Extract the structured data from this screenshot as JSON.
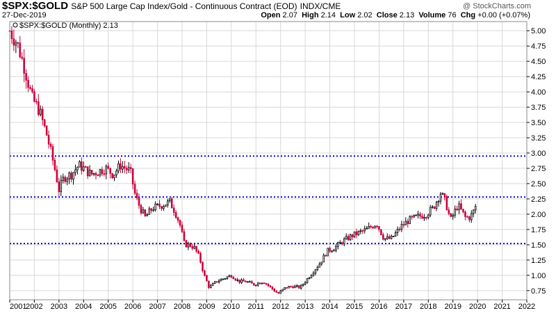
{
  "header": {
    "symbol": "$SPX:$GOLD",
    "description": "S&P 500 Large Cap Index/Gold - Continuous Contract (EOD)",
    "exchange": "INDX/CME",
    "date": "27-Dec-2019",
    "watermark": "@ StockCharts.com",
    "open_label": "Open",
    "open": "2.07",
    "high_label": "High",
    "high": "2.14",
    "low_label": "Low",
    "low": "2.02",
    "close_label": "Close",
    "close": "2.13",
    "volume_label": "Volume",
    "volume": "76",
    "chg_label": "Chg",
    "chg": "+0.00 (+0.07%)"
  },
  "legend_text": "$SPX:$GOLD (Monthly) 2.13",
  "colors": {
    "up": "#000000",
    "down": "#c8003c",
    "support": "#0000cc",
    "grid": "#d8d8d8"
  },
  "chart_data": {
    "type": "candlestick",
    "ylim": [
      0.6,
      5.15
    ],
    "y_ticks": [
      "0.75",
      "1.00",
      "1.25",
      "1.50",
      "1.75",
      "2.00",
      "2.25",
      "2.50",
      "2.75",
      "3.00",
      "3.25",
      "3.50",
      "3.75",
      "4.00",
      "4.25",
      "4.50",
      "4.75",
      "5.00"
    ],
    "x_ticks": [
      "2001",
      "2002",
      "2003",
      "2004",
      "2005",
      "2006",
      "2007",
      "2008",
      "2009",
      "2010",
      "2011",
      "2012",
      "2013",
      "2014",
      "2015",
      "2016",
      "2017",
      "2018",
      "2019",
      "2020",
      "2021",
      "2022"
    ],
    "xlim": [
      2001.0,
      2022.0
    ],
    "horizontal_lines": [
      2.95,
      2.28,
      1.52
    ],
    "anchors": [
      [
        2001.0,
        5.0
      ],
      [
        2001.3,
        4.8
      ],
      [
        2001.6,
        4.4
      ],
      [
        2001.9,
        3.9
      ],
      [
        2002.2,
        3.7
      ],
      [
        2002.5,
        3.3
      ],
      [
        2002.8,
        2.8
      ],
      [
        2003.0,
        2.4
      ],
      [
        2003.2,
        2.6
      ],
      [
        2003.5,
        2.65
      ],
      [
        2003.8,
        2.8
      ],
      [
        2004.0,
        2.75
      ],
      [
        2004.3,
        2.65
      ],
      [
        2004.6,
        2.7
      ],
      [
        2004.9,
        2.75
      ],
      [
        2005.2,
        2.65
      ],
      [
        2005.5,
        2.8
      ],
      [
        2005.9,
        2.7
      ],
      [
        2006.1,
        2.3
      ],
      [
        2006.3,
        2.1
      ],
      [
        2006.5,
        1.95
      ],
      [
        2006.8,
        2.1
      ],
      [
        2007.2,
        2.15
      ],
      [
        2007.5,
        2.2
      ],
      [
        2007.7,
        2.05
      ],
      [
        2007.9,
        1.85
      ],
      [
        2008.1,
        1.5
      ],
      [
        2008.3,
        1.5
      ],
      [
        2008.5,
        1.45
      ],
      [
        2008.7,
        1.3
      ],
      [
        2008.9,
        1.0
      ],
      [
        2009.1,
        0.8
      ],
      [
        2009.4,
        0.9
      ],
      [
        2009.7,
        0.95
      ],
      [
        2010.0,
        1.0
      ],
      [
        2010.3,
        0.9
      ],
      [
        2010.6,
        0.9
      ],
      [
        2010.9,
        0.85
      ],
      [
        2011.3,
        0.9
      ],
      [
        2011.6,
        0.8
      ],
      [
        2011.9,
        0.7
      ],
      [
        2012.2,
        0.8
      ],
      [
        2012.5,
        0.82
      ],
      [
        2012.8,
        0.8
      ],
      [
        2013.0,
        0.9
      ],
      [
        2013.3,
        1.05
      ],
      [
        2013.6,
        1.2
      ],
      [
        2013.9,
        1.4
      ],
      [
        2014.2,
        1.45
      ],
      [
        2014.5,
        1.55
      ],
      [
        2014.9,
        1.65
      ],
      [
        2015.2,
        1.7
      ],
      [
        2015.5,
        1.75
      ],
      [
        2015.9,
        1.85
      ],
      [
        2016.2,
        1.6
      ],
      [
        2016.5,
        1.6
      ],
      [
        2016.9,
        1.8
      ],
      [
        2017.2,
        1.9
      ],
      [
        2017.5,
        1.95
      ],
      [
        2017.9,
        2.0
      ],
      [
        2018.2,
        2.1
      ],
      [
        2018.5,
        2.35
      ],
      [
        2018.7,
        2.2
      ],
      [
        2018.9,
        1.9
      ],
      [
        2019.2,
        2.15
      ],
      [
        2019.5,
        1.95
      ],
      [
        2019.7,
        1.95
      ],
      [
        2019.95,
        2.13
      ]
    ],
    "last_close": 2.13
  }
}
